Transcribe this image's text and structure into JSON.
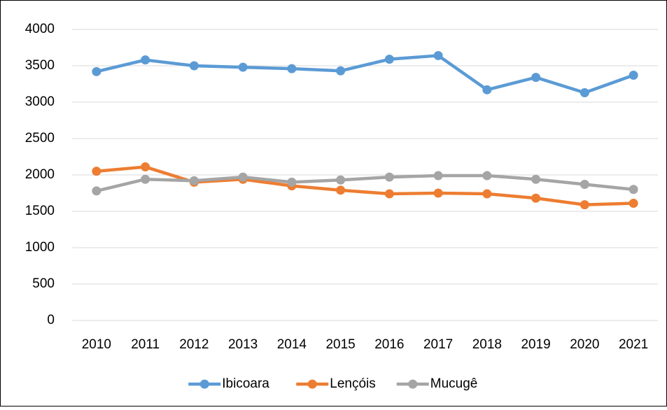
{
  "chart_data": {
    "type": "line",
    "categories": [
      "2010",
      "2011",
      "2012",
      "2013",
      "2014",
      "2015",
      "2016",
      "2017",
      "2018",
      "2019",
      "2020",
      "2021"
    ],
    "series": [
      {
        "name": "Ibicoara",
        "color": "#5b9bd5",
        "values": [
          3420,
          3580,
          3500,
          3480,
          3460,
          3430,
          3590,
          3640,
          3170,
          3340,
          3130,
          3370
        ]
      },
      {
        "name": "Lençóis",
        "color": "#ed7d31",
        "values": [
          2050,
          2110,
          1900,
          1940,
          1850,
          1790,
          1740,
          1750,
          1740,
          1680,
          1590,
          1610
        ]
      },
      {
        "name": "Mucugê",
        "color": "#a5a5a5",
        "values": [
          1780,
          1940,
          1920,
          1970,
          1900,
          1930,
          1970,
          1990,
          1990,
          1940,
          1870,
          1800
        ]
      }
    ],
    "ylim": [
      0,
      4000
    ],
    "yticks": [
      0,
      500,
      1000,
      1500,
      2000,
      2500,
      3000,
      3500,
      4000
    ],
    "grid": true,
    "legend": "bottom"
  }
}
